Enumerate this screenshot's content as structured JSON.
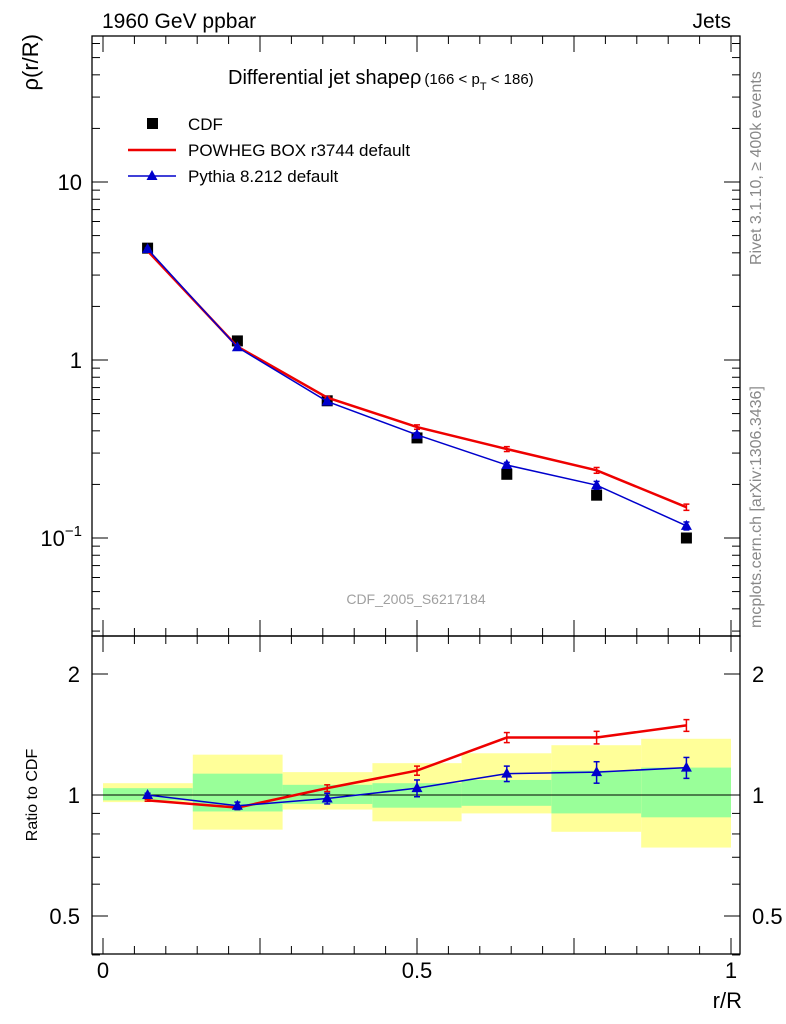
{
  "header": {
    "left": "1960 GeV ppbar",
    "right": "Jets"
  },
  "side_labels": {
    "top": "Rivet 3.1.10, ≥ 400k events",
    "bottom": "mcplots.cern.ch [arXiv:1306.3436]"
  },
  "chart_data": [
    {
      "panel": "main",
      "type": "line",
      "title": "Differential jet shapeρ",
      "title_range": {
        "open": "(166 < p",
        "sub": "T",
        "close": " < 186)"
      },
      "ylabel": "ρ(r/R)",
      "yscale": "log",
      "ylim": [
        0.03,
        60
      ],
      "xlim": [
        0,
        1
      ],
      "yticks": [
        {
          "base": "10",
          "exp": "",
          "value": 10
        },
        {
          "base": "1",
          "exp": "",
          "value": 1
        },
        {
          "base": "10",
          "exp": "−1",
          "value": 0.1
        }
      ],
      "watermark": "CDF_2005_S6217184",
      "legend": {
        "position": "top-left"
      },
      "x": [
        0.071,
        0.214,
        0.357,
        0.5,
        0.643,
        0.786,
        0.929
      ],
      "series": [
        {
          "name": "CDF",
          "color": "#000000",
          "marker": "square",
          "values": [
            4.25,
            1.28,
            0.59,
            0.365,
            0.228,
            0.174,
            0.1
          ]
        },
        {
          "name": "POWHEG BOX r3744 default",
          "color": "#ee0000",
          "marker": "none",
          "values": [
            4.1,
            1.19,
            0.615,
            0.42,
            0.316,
            0.24,
            0.149
          ],
          "err": [
            0.05,
            0.015,
            0.01,
            0.012,
            0.01,
            0.009,
            0.006
          ]
        },
        {
          "name": "Pythia 8.212 default",
          "color": "#0000cc",
          "marker": "triangle",
          "values": [
            4.2,
            1.18,
            0.585,
            0.38,
            0.257,
            0.198,
            0.117
          ],
          "err": [
            0.05,
            0.015,
            0.01,
            0.01,
            0.009,
            0.01,
            0.006
          ]
        }
      ]
    },
    {
      "panel": "ratio",
      "type": "line",
      "ylabel": "Ratio to CDF",
      "xlabel": "r/R",
      "yscale": "log",
      "ylim": [
        0.4,
        2.3
      ],
      "xlim": [
        0,
        1
      ],
      "xticks": [
        "0",
        "0.5",
        "1"
      ],
      "xtick_values": [
        0,
        0.5,
        1
      ],
      "yticks": [
        "2",
        "1",
        "0.5"
      ],
      "ytick_values": [
        2,
        1,
        0.5
      ],
      "bins": [
        [
          0,
          0.143
        ],
        [
          0.143,
          0.286
        ],
        [
          0.286,
          0.429
        ],
        [
          0.429,
          0.571
        ],
        [
          0.571,
          0.714
        ],
        [
          0.714,
          0.857
        ],
        [
          0.857,
          1.0
        ]
      ],
      "band_inner": [
        [
          0.97,
          1.04
        ],
        [
          0.91,
          1.13
        ],
        [
          0.95,
          1.06
        ],
        [
          0.93,
          1.07
        ],
        [
          0.94,
          1.09
        ],
        [
          0.9,
          1.15
        ],
        [
          0.88,
          1.17
        ]
      ],
      "band_outer": [
        [
          0.96,
          1.07
        ],
        [
          0.82,
          1.26
        ],
        [
          0.92,
          1.14
        ],
        [
          0.86,
          1.2
        ],
        [
          0.9,
          1.27
        ],
        [
          0.81,
          1.33
        ],
        [
          0.74,
          1.38
        ]
      ],
      "series": [
        {
          "name": "POWHEG BOX r3744 default",
          "color": "#ee0000",
          "values": [
            0.97,
            0.93,
            1.04,
            1.15,
            1.39,
            1.39,
            1.49
          ],
          "err": [
            0.005,
            0.01,
            0.02,
            0.03,
            0.04,
            0.05,
            0.05
          ]
        },
        {
          "name": "Pythia 8.212 default",
          "color": "#0000cc",
          "values": [
            1.0,
            0.94,
            0.98,
            1.04,
            1.13,
            1.14,
            1.17
          ],
          "err": [
            0.01,
            0.02,
            0.03,
            0.05,
            0.05,
            0.07,
            0.07
          ]
        }
      ]
    }
  ]
}
